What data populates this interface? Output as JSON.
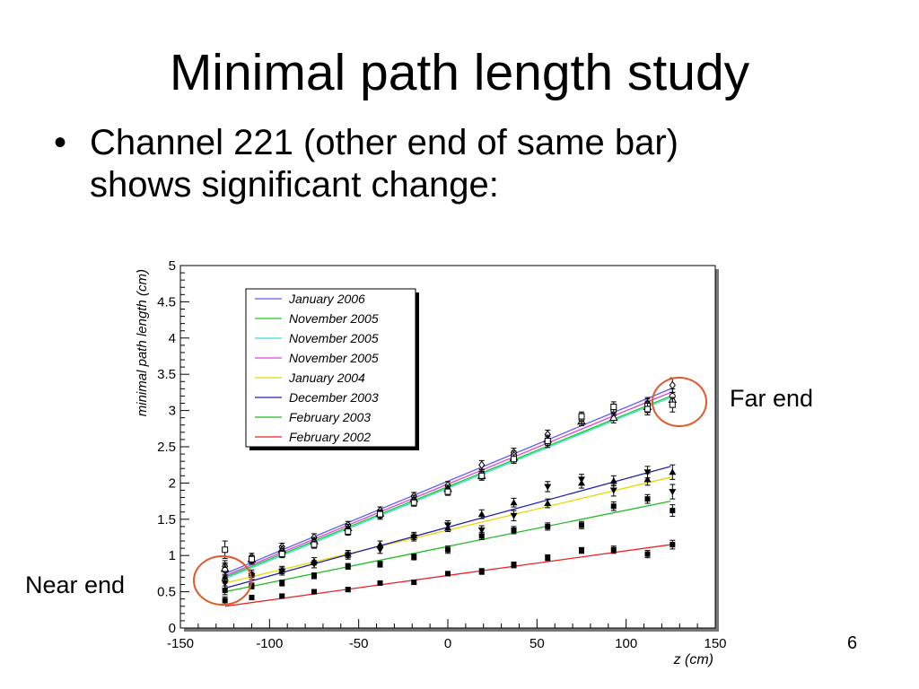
{
  "slide": {
    "title": "Minimal path length study",
    "bullet_lines": [
      "Channel 221 (other end of same bar)",
      "shows significant change:"
    ],
    "page_number": "6"
  },
  "callouts": {
    "far_end": "Far end",
    "near_end": "Near end",
    "circle_color": "#e05a2a"
  },
  "chart_data": {
    "type": "line",
    "xlabel": "z  (cm)",
    "ylabel": "minimal path length (cm)",
    "xlim": [
      -150,
      150
    ],
    "ylim": [
      0,
      5
    ],
    "xticks": [
      -150,
      -100,
      -50,
      0,
      50,
      100,
      150
    ],
    "xtick_labels": [
      "-150",
      "-100",
      "-50",
      "0",
      "50",
      "100",
      "150"
    ],
    "yticks": [
      0,
      0.5,
      1,
      1.5,
      2,
      2.5,
      3,
      3.5,
      4,
      4.5,
      5
    ],
    "ytick_labels": [
      "0",
      "0.5",
      "1",
      "1.5",
      "2",
      "2.5",
      "3",
      "3.5",
      "4",
      "4.5",
      "5"
    ],
    "grid": false,
    "legend_position": "top-left",
    "series": [
      {
        "name": "January 2006",
        "color": "#5a5aff",
        "line": [
          [
            -125,
            0.75
          ],
          [
            125,
            3.3
          ]
        ],
        "marker": "diamond-open",
        "points": [
          [
            -125,
            0.85,
            0.08
          ],
          [
            -110,
            0.98,
            0.05
          ],
          [
            -93,
            1.12,
            0.05
          ],
          [
            -75,
            1.25,
            0.05
          ],
          [
            -56,
            1.42,
            0.05
          ],
          [
            -38,
            1.62,
            0.05
          ],
          [
            -19,
            1.82,
            0.05
          ],
          [
            0,
            1.97,
            0.05
          ],
          [
            19,
            2.25,
            0.06
          ],
          [
            37,
            2.42,
            0.06
          ],
          [
            56,
            2.67,
            0.06
          ],
          [
            75,
            2.9,
            0.06
          ],
          [
            93,
            3.02,
            0.07
          ],
          [
            112,
            3.1,
            0.08
          ],
          [
            126,
            3.35,
            0.1
          ]
        ]
      },
      {
        "name": "November 2005",
        "color": "#22cc22",
        "line": [
          [
            -125,
            0.7
          ],
          [
            125,
            3.2
          ]
        ],
        "marker": "triangle-open",
        "points": [
          [
            -125,
            0.82,
            0.08
          ],
          [
            -110,
            0.95,
            0.05
          ],
          [
            -93,
            1.08,
            0.05
          ],
          [
            -75,
            1.2,
            0.05
          ],
          [
            -56,
            1.38,
            0.05
          ],
          [
            -38,
            1.58,
            0.05
          ],
          [
            -19,
            1.78,
            0.05
          ],
          [
            0,
            1.92,
            0.05
          ],
          [
            19,
            2.1,
            0.06
          ],
          [
            37,
            2.35,
            0.06
          ],
          [
            56,
            2.6,
            0.06
          ],
          [
            75,
            2.85,
            0.06
          ],
          [
            93,
            2.9,
            0.07
          ],
          [
            112,
            3.05,
            0.08
          ],
          [
            126,
            3.15,
            0.1
          ]
        ]
      },
      {
        "name": "November 2005",
        "color": "#33dddd",
        "line": [
          [
            -125,
            0.68
          ],
          [
            125,
            3.18
          ]
        ],
        "marker": "circle-open",
        "points": [
          [
            -125,
            0.8,
            0.08
          ],
          [
            -110,
            0.93,
            0.05
          ],
          [
            -93,
            1.05,
            0.05
          ],
          [
            -75,
            1.18,
            0.05
          ],
          [
            -56,
            1.35,
            0.05
          ],
          [
            -38,
            1.55,
            0.05
          ],
          [
            -19,
            1.75,
            0.05
          ],
          [
            0,
            1.9,
            0.05
          ],
          [
            19,
            2.12,
            0.06
          ],
          [
            37,
            2.38,
            0.06
          ],
          [
            56,
            2.55,
            0.06
          ],
          [
            75,
            2.88,
            0.06
          ],
          [
            93,
            3.0,
            0.07
          ],
          [
            112,
            3.08,
            0.08
          ],
          [
            126,
            3.2,
            0.1
          ]
        ]
      },
      {
        "name": "November 2005",
        "color": "#dd44dd",
        "line": [
          [
            -125,
            0.72
          ],
          [
            125,
            3.25
          ]
        ],
        "marker": "square-open",
        "points": [
          [
            -125,
            1.08,
            0.12
          ],
          [
            -110,
            0.95,
            0.05
          ],
          [
            -93,
            1.02,
            0.05
          ],
          [
            -75,
            1.15,
            0.05
          ],
          [
            -56,
            1.33,
            0.05
          ],
          [
            -38,
            1.57,
            0.05
          ],
          [
            -19,
            1.73,
            0.05
          ],
          [
            0,
            1.88,
            0.05
          ],
          [
            19,
            2.1,
            0.06
          ],
          [
            37,
            2.33,
            0.06
          ],
          [
            56,
            2.58,
            0.06
          ],
          [
            75,
            2.92,
            0.06
          ],
          [
            93,
            3.05,
            0.07
          ],
          [
            112,
            3.02,
            0.08
          ],
          [
            126,
            3.08,
            0.1
          ]
        ]
      },
      {
        "name": "January 2004",
        "color": "#e6d800",
        "line": [
          [
            -125,
            0.62
          ],
          [
            125,
            2.08
          ]
        ],
        "marker": "triangle-up",
        "points": [
          [
            -125,
            0.7,
            0.08
          ],
          [
            -110,
            0.75,
            0.05
          ],
          [
            -93,
            0.8,
            0.05
          ],
          [
            -75,
            0.92,
            0.05
          ],
          [
            -56,
            1.02,
            0.05
          ],
          [
            -38,
            1.15,
            0.05
          ],
          [
            -19,
            1.27,
            0.05
          ],
          [
            0,
            1.38,
            0.05
          ],
          [
            19,
            1.57,
            0.06
          ],
          [
            37,
            1.73,
            0.06
          ],
          [
            56,
            1.72,
            0.06
          ],
          [
            75,
            2.0,
            0.07
          ],
          [
            93,
            2.03,
            0.07
          ],
          [
            112,
            2.05,
            0.08
          ],
          [
            126,
            2.15,
            0.1
          ]
        ]
      },
      {
        "name": "December 2003",
        "color": "#2222aa",
        "line": [
          [
            -125,
            0.55
          ],
          [
            125,
            2.23
          ]
        ],
        "marker": "triangle-down",
        "points": [
          [
            -125,
            0.62,
            0.08
          ],
          [
            -110,
            0.72,
            0.05
          ],
          [
            -93,
            0.78,
            0.05
          ],
          [
            -75,
            0.88,
            0.05
          ],
          [
            -56,
            1.0,
            0.05
          ],
          [
            -38,
            1.08,
            0.05
          ],
          [
            -19,
            1.25,
            0.05
          ],
          [
            0,
            1.42,
            0.06
          ],
          [
            19,
            1.35,
            0.06
          ],
          [
            37,
            1.55,
            0.07
          ],
          [
            56,
            1.95,
            0.07
          ],
          [
            75,
            2.05,
            0.07
          ],
          [
            93,
            1.9,
            0.08
          ],
          [
            112,
            2.15,
            0.08
          ],
          [
            126,
            1.88,
            0.1
          ]
        ]
      },
      {
        "name": "February 2003",
        "color": "#22bb22",
        "line": [
          [
            -125,
            0.5
          ],
          [
            125,
            1.75
          ]
        ],
        "marker": "square",
        "points": [
          [
            -125,
            0.52,
            0.06
          ],
          [
            -110,
            0.58,
            0.04
          ],
          [
            -93,
            0.62,
            0.04
          ],
          [
            -75,
            0.72,
            0.04
          ],
          [
            -56,
            0.85,
            0.04
          ],
          [
            -38,
            0.88,
            0.04
          ],
          [
            -19,
            0.98,
            0.04
          ],
          [
            0,
            1.08,
            0.05
          ],
          [
            19,
            1.27,
            0.05
          ],
          [
            37,
            1.35,
            0.05
          ],
          [
            56,
            1.4,
            0.05
          ],
          [
            75,
            1.42,
            0.05
          ],
          [
            93,
            1.68,
            0.06
          ],
          [
            112,
            1.78,
            0.06
          ],
          [
            126,
            1.62,
            0.08
          ]
        ]
      },
      {
        "name": "February 2002",
        "color": "#ee2222",
        "line": [
          [
            -125,
            0.3
          ],
          [
            125,
            1.15
          ]
        ],
        "marker": "square",
        "points": [
          [
            -125,
            0.38,
            0.05
          ],
          [
            -110,
            0.42,
            0.03
          ],
          [
            -93,
            0.44,
            0.03
          ],
          [
            -75,
            0.5,
            0.03
          ],
          [
            -56,
            0.53,
            0.03
          ],
          [
            -38,
            0.62,
            0.03
          ],
          [
            -19,
            0.63,
            0.03
          ],
          [
            0,
            0.75,
            0.03
          ],
          [
            19,
            0.78,
            0.04
          ],
          [
            37,
            0.87,
            0.04
          ],
          [
            56,
            0.97,
            0.04
          ],
          [
            75,
            1.07,
            0.04
          ],
          [
            93,
            1.08,
            0.05
          ],
          [
            112,
            1.02,
            0.05
          ],
          [
            126,
            1.15,
            0.06
          ]
        ]
      }
    ]
  }
}
